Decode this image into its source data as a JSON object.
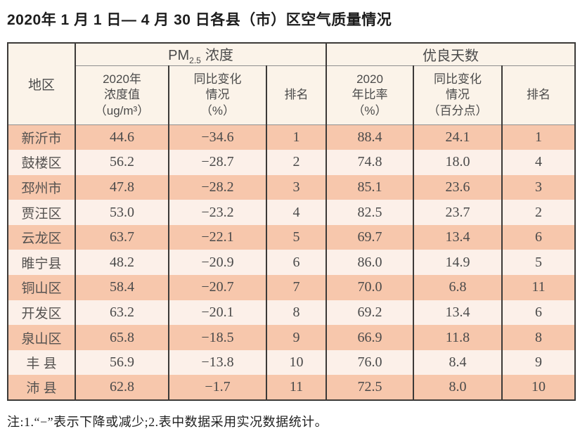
{
  "title": "2020年 1 月 1 日— 4 月 30 日各县（市）区空气质量情况",
  "table": {
    "region_header": "地区",
    "pm_group": {
      "main": "PM",
      "sub": "2.5",
      "rest": "浓度"
    },
    "good_days_group": "优良天数",
    "sub_headers": [
      "2020年\n浓度值\n（ug/m³）",
      "同比变化\n情况\n（%）",
      "排名",
      "2020\n年比率\n（%）",
      "同比变化\n情况\n（百分点）",
      "排名"
    ],
    "rows": [
      {
        "region": "新沂市",
        "pm_value": "44.6",
        "pm_change": "−34.6",
        "pm_rank": "1",
        "good_ratio": "88.4",
        "good_change": "24.1",
        "good_rank": "1"
      },
      {
        "region": "鼓楼区",
        "pm_value": "56.2",
        "pm_change": "−28.7",
        "pm_rank": "2",
        "good_ratio": "74.8",
        "good_change": "18.0",
        "good_rank": "4"
      },
      {
        "region": "邳州市",
        "pm_value": "47.8",
        "pm_change": "−28.2",
        "pm_rank": "3",
        "good_ratio": "85.1",
        "good_change": "23.6",
        "good_rank": "3"
      },
      {
        "region": "贾汪区",
        "pm_value": "53.0",
        "pm_change": "−23.2",
        "pm_rank": "4",
        "good_ratio": "82.5",
        "good_change": "23.7",
        "good_rank": "2"
      },
      {
        "region": "云龙区",
        "pm_value": "63.7",
        "pm_change": "−22.1",
        "pm_rank": "5",
        "good_ratio": "69.7",
        "good_change": "13.4",
        "good_rank": "6"
      },
      {
        "region": "睢宁县",
        "pm_value": "48.2",
        "pm_change": "−20.9",
        "pm_rank": "6",
        "good_ratio": "86.0",
        "good_change": "14.9",
        "good_rank": "5"
      },
      {
        "region": "铜山区",
        "pm_value": "58.4",
        "pm_change": "−20.7",
        "pm_rank": "7",
        "good_ratio": "70.0",
        "good_change": "6.8",
        "good_rank": "11"
      },
      {
        "region": "开发区",
        "pm_value": "63.2",
        "pm_change": "−20.1",
        "pm_rank": "8",
        "good_ratio": "69.2",
        "good_change": "13.4",
        "good_rank": "6"
      },
      {
        "region": "泉山区",
        "pm_value": "65.8",
        "pm_change": "−18.5",
        "pm_rank": "9",
        "good_ratio": "66.9",
        "good_change": "11.8",
        "good_rank": "8"
      },
      {
        "region": "丰 县",
        "pm_value": "56.9",
        "pm_change": "−13.8",
        "pm_rank": "10",
        "good_ratio": "76.0",
        "good_change": "8.4",
        "good_rank": "9"
      },
      {
        "region": "沛 县",
        "pm_value": "62.8",
        "pm_change": "−1.7",
        "pm_rank": "11",
        "good_ratio": "72.5",
        "good_change": "8.0",
        "good_rank": "10"
      }
    ]
  },
  "footnote": "注:1.“−”表示下降或减少;2.表中数据采用实况数据统计。",
  "colors": {
    "row_odd": "#f7c7ac",
    "row_even": "#fcf0e9",
    "header_bg": "#fbf3e9",
    "border": "#3c3a38",
    "grid_line": "#8f8f8f",
    "text": "#4a4a4a",
    "title_text": "#1d1d1d"
  }
}
